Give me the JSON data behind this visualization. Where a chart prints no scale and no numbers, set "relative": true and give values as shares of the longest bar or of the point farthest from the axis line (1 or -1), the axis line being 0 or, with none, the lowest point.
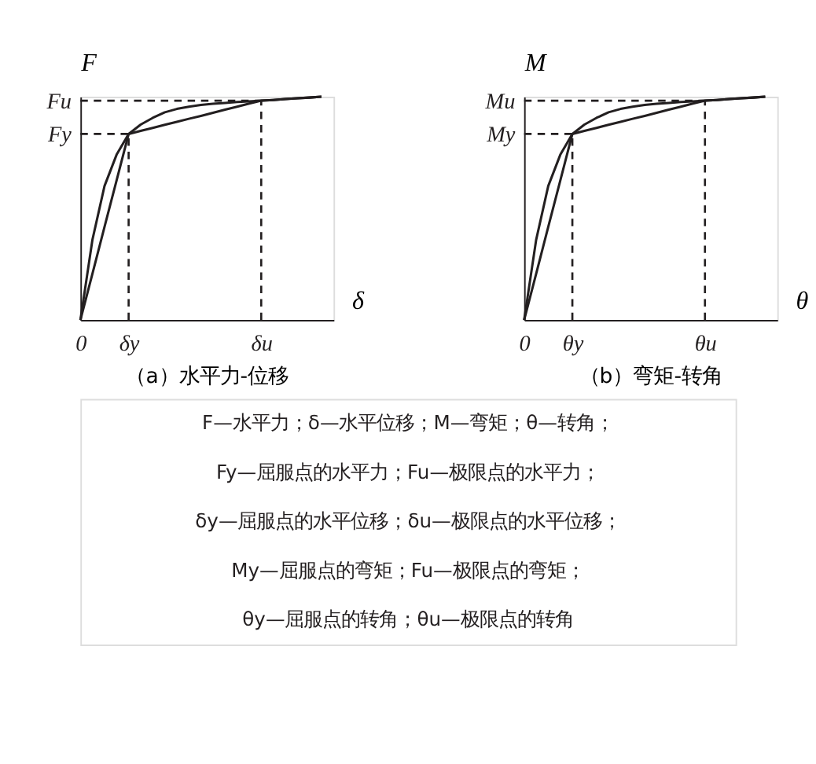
{
  "chart_data": [
    {
      "type": "line",
      "title": "（a）水平力-位移",
      "xlabel": "δ",
      "ylabel": "F",
      "relative": true,
      "legend": false,
      "line_style": "solid",
      "marker": "none",
      "categories": [
        "0",
        null,
        null,
        null,
        "δy",
        null,
        null,
        null,
        null,
        null,
        null,
        null,
        null,
        null,
        null,
        "δu",
        null,
        null,
        null,
        null,
        null,
        null
      ],
      "series": [
        {
          "color": "#231f20",
          "values": [
            0,
            0.36,
            0.6,
            0.74,
            0.833,
            0.875,
            0.905,
            0.93,
            0.945,
            0.955,
            0.963,
            0.968,
            0.972,
            0.976,
            0.979,
            0.982,
            0.985,
            0.989,
            0.993,
            0.996,
            1,
            null
          ]
        },
        {
          "color": "#231f20",
          "values": [
            0,
            0.208,
            0.417,
            0.625,
            0.833,
            0.847,
            0.86,
            0.874,
            0.887,
            0.901,
            0.914,
            0.928,
            0.942,
            0.955,
            0.969,
            0.982,
            0.985,
            0.989,
            0.993,
            0.996,
            1,
            null
          ]
        }
      ],
      "ref_lines": [
        {
          "axis": "y",
          "value": 0.833,
          "label": "Fy",
          "line_style": "dashed"
        },
        {
          "axis": "y",
          "value": 0.982,
          "label": "Fu",
          "line_style": "dashed"
        },
        {
          "axis": "x",
          "value": "δy",
          "line_style": "dashed"
        },
        {
          "axis": "x",
          "value": "δu",
          "line_style": "dashed"
        }
      ],
      "annotations": [
        "F—水平力；δ—水平位移；M—弯矩；θ—转角；",
        "Fy—屈服点的水平力；Fu—极限点的水平力；",
        "δy—屈服点的水平位移；δu—极限点的水平位移；",
        "My—屈服点的弯矩；Fu—极限点的弯矩；",
        "θy—屈服点的转角；θu—极限点的转角"
      ]
    },
    {
      "type": "line",
      "title": "（b）弯矩-转角",
      "xlabel": "θ",
      "ylabel": "M",
      "relative": true,
      "legend": false,
      "line_style": "solid",
      "marker": "none",
      "categories": [
        "0",
        null,
        null,
        null,
        "θy",
        null,
        null,
        null,
        null,
        null,
        null,
        null,
        null,
        null,
        null,
        "θu",
        null,
        null,
        null,
        null,
        null,
        null
      ],
      "series": [
        {
          "color": "#231f20",
          "values": [
            0,
            0.36,
            0.6,
            0.74,
            0.833,
            0.875,
            0.905,
            0.93,
            0.945,
            0.955,
            0.963,
            0.968,
            0.972,
            0.976,
            0.979,
            0.982,
            0.985,
            0.989,
            0.993,
            0.996,
            1,
            null
          ]
        },
        {
          "color": "#231f20",
          "values": [
            0,
            0.208,
            0.417,
            0.625,
            0.833,
            0.847,
            0.86,
            0.874,
            0.887,
            0.901,
            0.914,
            0.928,
            0.942,
            0.955,
            0.969,
            0.982,
            0.985,
            0.989,
            0.993,
            0.996,
            1,
            null
          ]
        }
      ],
      "ref_lines": [
        {
          "axis": "y",
          "value": 0.833,
          "label": "My",
          "line_style": "dashed"
        },
        {
          "axis": "y",
          "value": 0.982,
          "label": "Mu",
          "line_style": "dashed"
        },
        {
          "axis": "x",
          "value": "θy",
          "line_style": "dashed"
        },
        {
          "axis": "x",
          "value": "θu",
          "line_style": "dashed"
        }
      ]
    }
  ]
}
